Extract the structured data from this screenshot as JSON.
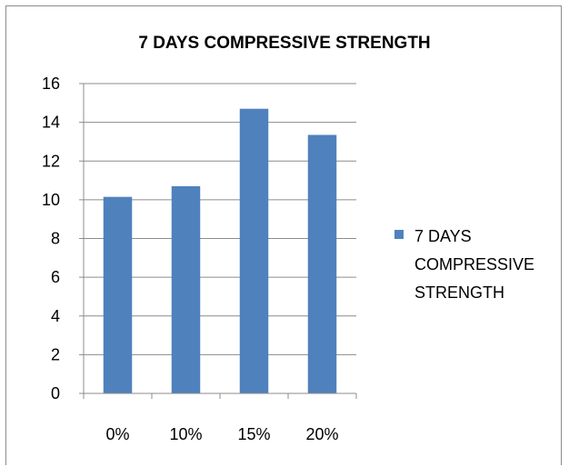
{
  "chart_data": {
    "type": "bar",
    "title": "7 DAYS COMPRESSIVE STRENGTH",
    "categories": [
      "0%",
      "10%",
      "15%",
      "20%"
    ],
    "series": [
      {
        "name": "7 DAYS COMPRESSIVE STRENGTH",
        "values": [
          10.15,
          10.7,
          14.7,
          13.35
        ],
        "color": "#4f81bd"
      }
    ],
    "ylim": [
      0,
      16
    ],
    "yticks": [
      "0",
      "2",
      "4",
      "6",
      "8",
      "10",
      "12",
      "14",
      "16"
    ],
    "grid": true,
    "legend": "right",
    "legend_lines": [
      "7 DAYS",
      "COMPRESSIVE",
      "STRENGTH"
    ]
  }
}
